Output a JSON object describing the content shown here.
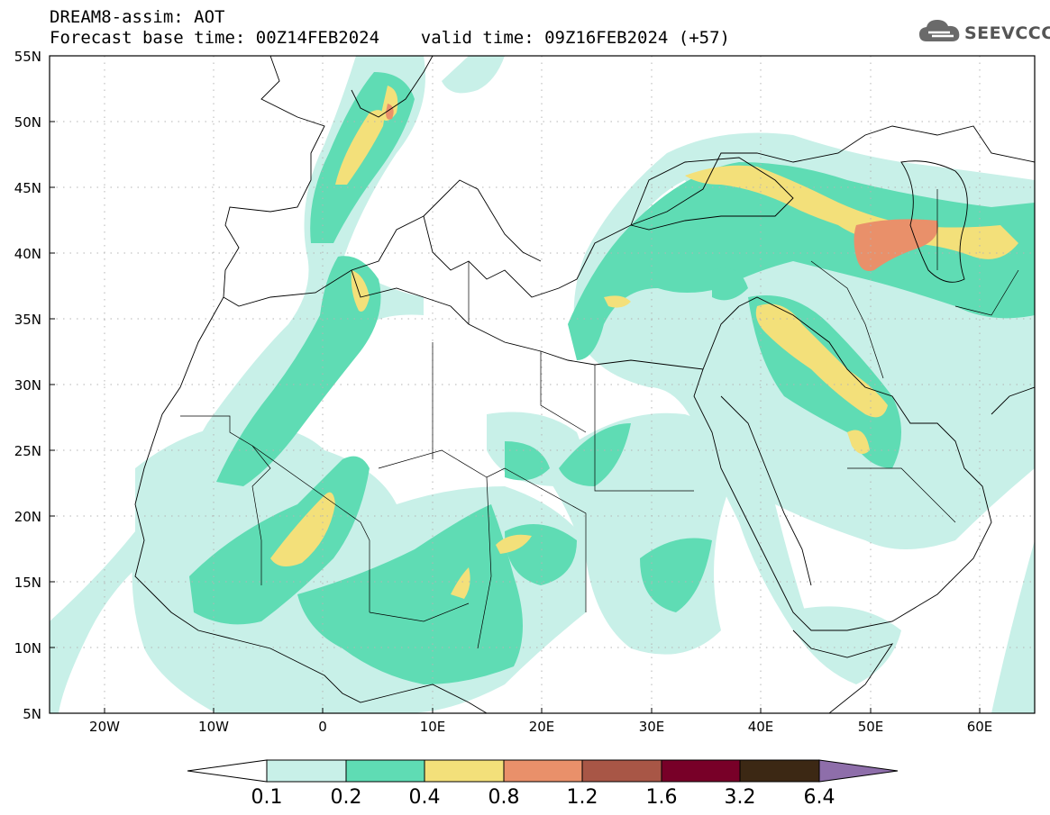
{
  "header": {
    "line1": "DREAM8-assim: AOT",
    "line2": "Forecast base time: 00Z14FEB2024    valid time: 09Z16FEB2024 (+57)"
  },
  "logo": {
    "text": "SEEVCCC",
    "icon": "cloud-icon"
  },
  "map": {
    "lat_labels": [
      "55N",
      "50N",
      "45N",
      "40N",
      "35N",
      "30N",
      "25N",
      "20N",
      "15N",
      "10N",
      "5N"
    ],
    "lon_labels": [
      "20W",
      "10W",
      "0",
      "10E",
      "20E",
      "30E",
      "40E",
      "50E",
      "60E"
    ],
    "lat_range": [
      5,
      55
    ],
    "lon_range": [
      -25,
      65
    ],
    "grid": "dotted"
  },
  "colorbar": {
    "labels": [
      "0.1",
      "0.2",
      "0.4",
      "0.8",
      "1.2",
      "1.6",
      "3.2",
      "6.4"
    ],
    "colors": [
      "#c8f0e8",
      "#5fdcb4",
      "#f3e07a",
      "#e9906a",
      "#a85646",
      "#780028",
      "#3c2814",
      "#8e6eaa"
    ]
  }
}
